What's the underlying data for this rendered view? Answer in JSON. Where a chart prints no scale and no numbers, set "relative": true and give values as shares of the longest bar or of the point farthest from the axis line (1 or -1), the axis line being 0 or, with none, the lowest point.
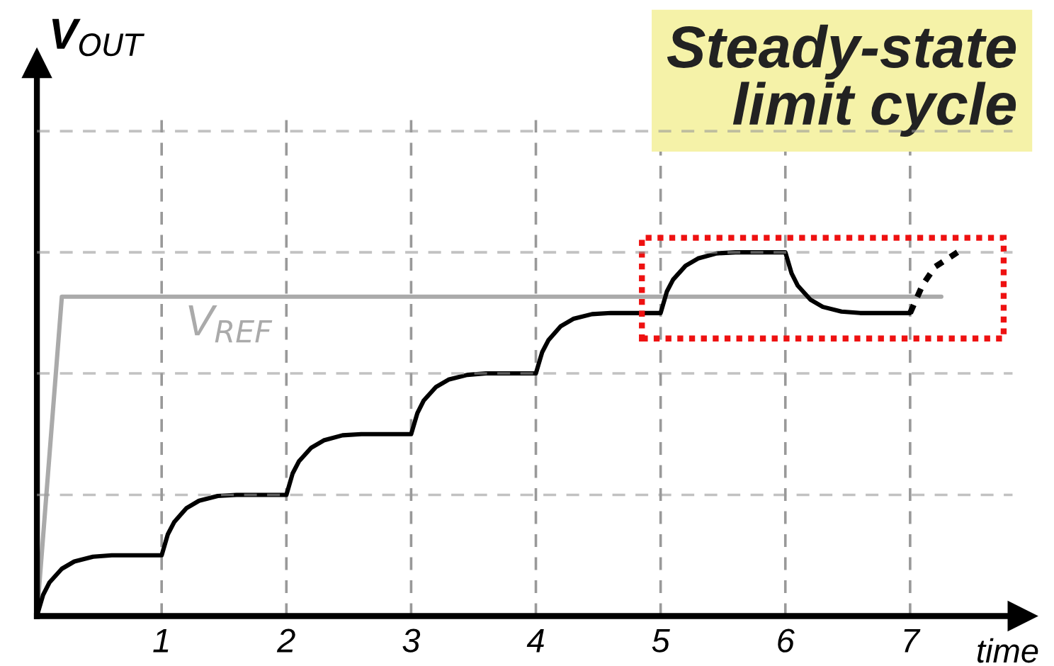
{
  "chart_data": {
    "type": "line",
    "relative": true,
    "xlabel": "time",
    "ylabel": "V$_{OUT}$",
    "annotations": [
      "Steady-state\nlimit cycle"
    ],
    "xlim": [
      0,
      7.9
    ],
    "xticks": [
      1,
      2,
      3,
      4,
      5,
      6,
      7
    ],
    "grid": "x",
    "legend": false,
    "ref_lines": [
      {
        "axis": "y",
        "value": 0.333,
        "color": "#999999",
        "line_style": "dashed"
      },
      {
        "axis": "y",
        "value": 0.667,
        "color": "#999999",
        "line_style": "dashed"
      },
      {
        "axis": "y",
        "value": 1,
        "color": "#999999",
        "line_style": "dashed"
      },
      {
        "axis": "y",
        "value": 1.333,
        "color": "#999999",
        "line_style": "dashed"
      }
    ],
    "series": [
      {
        "name": "V$_{REF}$",
        "color": "#aaaaaa",
        "x": [
          0,
          0.2,
          7.25
        ],
        "values": [
          0,
          0.878,
          0.878
        ]
      },
      {
        "color": "#000000",
        "line_style": "solid",
        "x": [
          0,
          0.05,
          0.1,
          0.2,
          0.3,
          0.45,
          0.6,
          1,
          1.05,
          1.1,
          1.2,
          1.3,
          1.45,
          1.6,
          2,
          2.05,
          2.1,
          2.2,
          2.3,
          2.45,
          2.6,
          3,
          3.05,
          3.1,
          3.2,
          3.3,
          3.45,
          3.6,
          4,
          4.05,
          4.1,
          4.2,
          4.3,
          4.45,
          4.6,
          5,
          5.05,
          5.1,
          5.2,
          5.3,
          5.45,
          5.6,
          6,
          6.05,
          6.1,
          6.2,
          6.3,
          6.45,
          6.6,
          7
        ],
        "values": [
          0,
          0.058,
          0.092,
          0.13,
          0.15,
          0.163,
          0.167,
          0.167,
          0.225,
          0.258,
          0.297,
          0.317,
          0.33,
          0.333,
          0.333,
          0.392,
          0.425,
          0.463,
          0.483,
          0.497,
          0.5,
          0.5,
          0.558,
          0.592,
          0.63,
          0.65,
          0.663,
          0.667,
          0.667,
          0.725,
          0.758,
          0.797,
          0.817,
          0.83,
          0.833,
          0.833,
          0.892,
          0.925,
          0.963,
          0.983,
          0.997,
          1,
          1,
          0.942,
          0.908,
          0.87,
          0.85,
          0.837,
          0.833,
          0.833
        ]
      },
      {
        "color": "#000000",
        "line_style": "dotted",
        "x": [
          7,
          7.1,
          7.2,
          7.38
        ],
        "values": [
          0.833,
          0.91,
          0.96,
          1
        ]
      }
    ]
  }
}
